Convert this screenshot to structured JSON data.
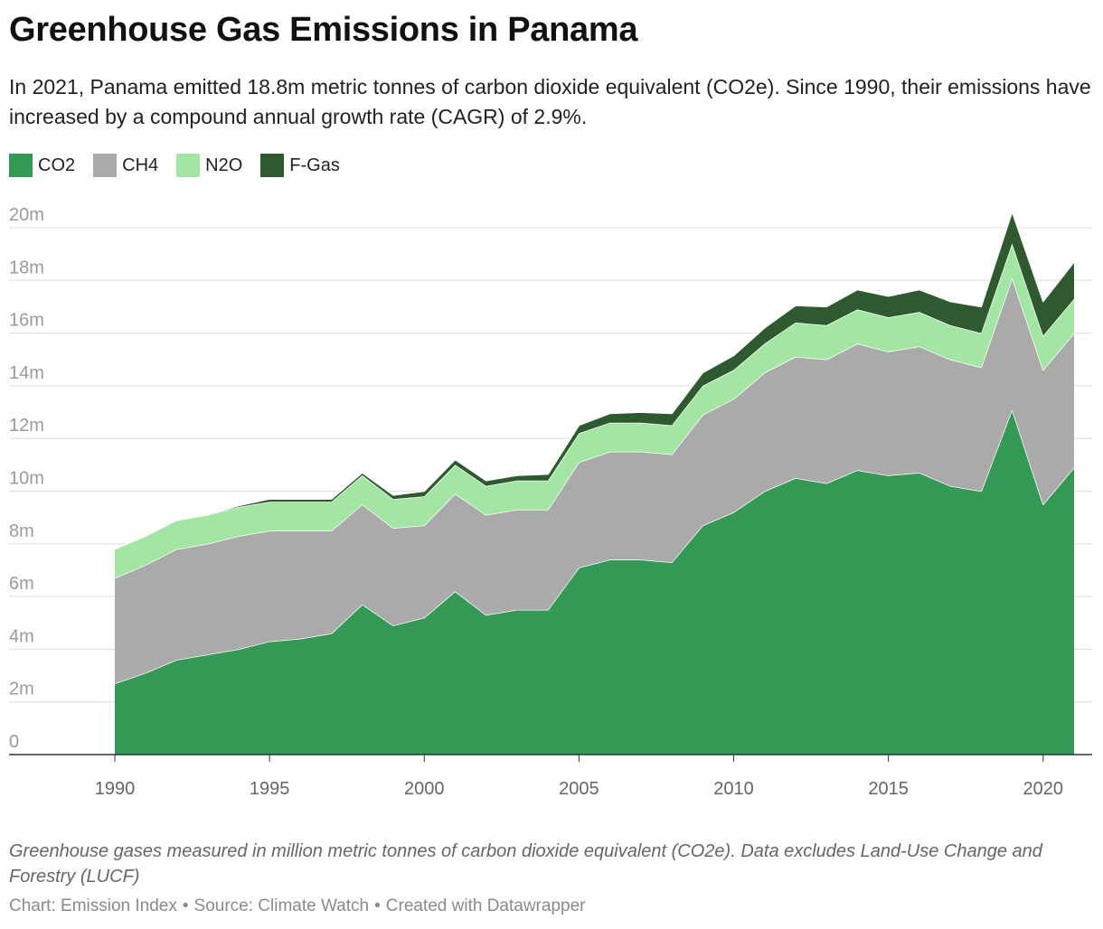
{
  "header": {
    "title": "Greenhouse Gas Emissions in Panama",
    "subtitle": "In 2021, Panama emitted 18.8m metric tonnes of carbon dioxide equivalent (CO2e). Since 1990, their emissions have increased by a compound annual growth rate (CAGR) of 2.9%."
  },
  "colors": {
    "CO2": "#339955",
    "CH4": "#aaaaaa",
    "N2O": "#a3e6a3",
    "F-Gas": "#2f5a30"
  },
  "chart_data": {
    "type": "area",
    "stacked": true,
    "x": [
      1990,
      1991,
      1992,
      1993,
      1994,
      1995,
      1996,
      1997,
      1998,
      1999,
      2000,
      2001,
      2002,
      2003,
      2004,
      2005,
      2006,
      2007,
      2008,
      2009,
      2010,
      2011,
      2012,
      2013,
      2014,
      2015,
      2016,
      2017,
      2018,
      2019,
      2020,
      2021
    ],
    "series": [
      {
        "name": "CO2",
        "values": [
          2.7,
          3.1,
          3.6,
          3.8,
          4.0,
          4.3,
          4.4,
          4.6,
          5.7,
          4.9,
          5.2,
          6.2,
          5.3,
          5.5,
          5.5,
          7.1,
          7.4,
          7.4,
          7.3,
          8.7,
          9.2,
          10.0,
          10.5,
          10.3,
          10.8,
          10.6,
          10.7,
          10.2,
          10.0,
          13.1,
          9.5,
          10.9
        ]
      },
      {
        "name": "CH4",
        "values": [
          4.0,
          4.1,
          4.2,
          4.2,
          4.3,
          4.2,
          4.1,
          3.9,
          3.8,
          3.7,
          3.5,
          3.7,
          3.8,
          3.8,
          3.8,
          4.0,
          4.1,
          4.1,
          4.1,
          4.2,
          4.3,
          4.5,
          4.6,
          4.7,
          4.8,
          4.7,
          4.8,
          4.8,
          4.7,
          5.0,
          5.1,
          5.1
        ]
      },
      {
        "name": "N2O",
        "values": [
          1.1,
          1.1,
          1.1,
          1.1,
          1.1,
          1.1,
          1.1,
          1.1,
          1.1,
          1.1,
          1.1,
          1.1,
          1.1,
          1.1,
          1.1,
          1.1,
          1.1,
          1.1,
          1.1,
          1.1,
          1.1,
          1.1,
          1.3,
          1.3,
          1.3,
          1.3,
          1.3,
          1.3,
          1.3,
          1.3,
          1.3,
          1.3
        ]
      },
      {
        "name": "F-Gas",
        "values": [
          0.0,
          0.0,
          0.0,
          0.0,
          0.05,
          0.1,
          0.1,
          0.1,
          0.1,
          0.15,
          0.2,
          0.2,
          0.2,
          0.2,
          0.25,
          0.3,
          0.35,
          0.4,
          0.45,
          0.5,
          0.55,
          0.6,
          0.65,
          0.7,
          0.75,
          0.8,
          0.85,
          0.9,
          1.0,
          1.2,
          1.3,
          1.4
        ]
      }
    ],
    "y_ticks": [
      "0",
      "2m",
      "4m",
      "6m",
      "8m",
      "10m",
      "12m",
      "14m",
      "16m",
      "18m",
      "20m"
    ],
    "x_ticks": [
      "1990",
      "1995",
      "2000",
      "2005",
      "2010",
      "2015",
      "2020"
    ],
    "ylim": [
      0,
      20
    ],
    "legend_position": "top-left",
    "grid": true
  },
  "notes": "Greenhouse gases measured in million metric tonnes of carbon dioxide equivalent (CO2e). Data excludes Land-Use Change and Forestry (LUCF)",
  "footer": {
    "chart": "Chart: Emission Index",
    "source": "Source: Climate Watch",
    "created": "Created with Datawrapper",
    "separator": "•"
  }
}
